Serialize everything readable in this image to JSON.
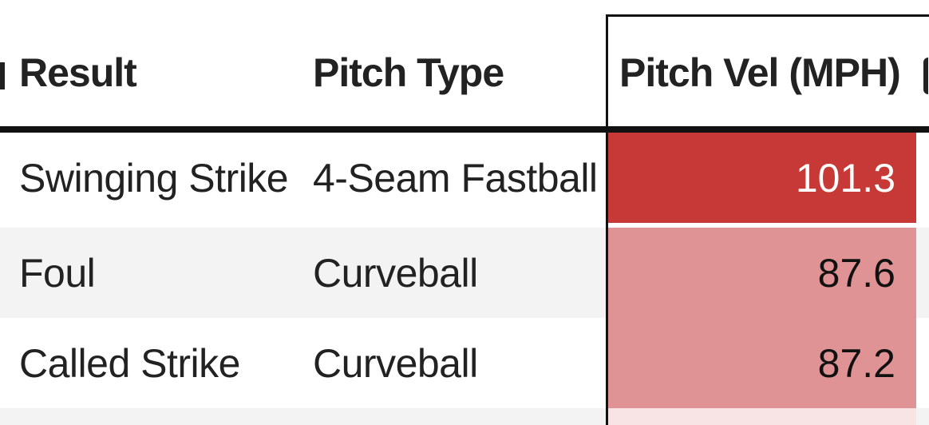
{
  "table": {
    "columns": {
      "result": "Result",
      "pitch_type": "Pitch Type",
      "pitch_vel": "Pitch Vel (MPH)"
    },
    "rows": [
      {
        "result": "Swinging Strike",
        "pitch_type": "4-Seam Fastball",
        "pitch_vel": "101.3"
      },
      {
        "result": "Foul",
        "pitch_type": "Curveball",
        "pitch_vel": "87.6"
      },
      {
        "result": "Called Strike",
        "pitch_type": "Curveball",
        "pitch_vel": "87.2"
      }
    ]
  },
  "colors": {
    "velocity_high": "#c73936",
    "velocity_mid": "#df9394",
    "velocity_low": "#f8e4e4",
    "row_alt_bg": "#f3f3f3",
    "header_rule": "#111111"
  }
}
